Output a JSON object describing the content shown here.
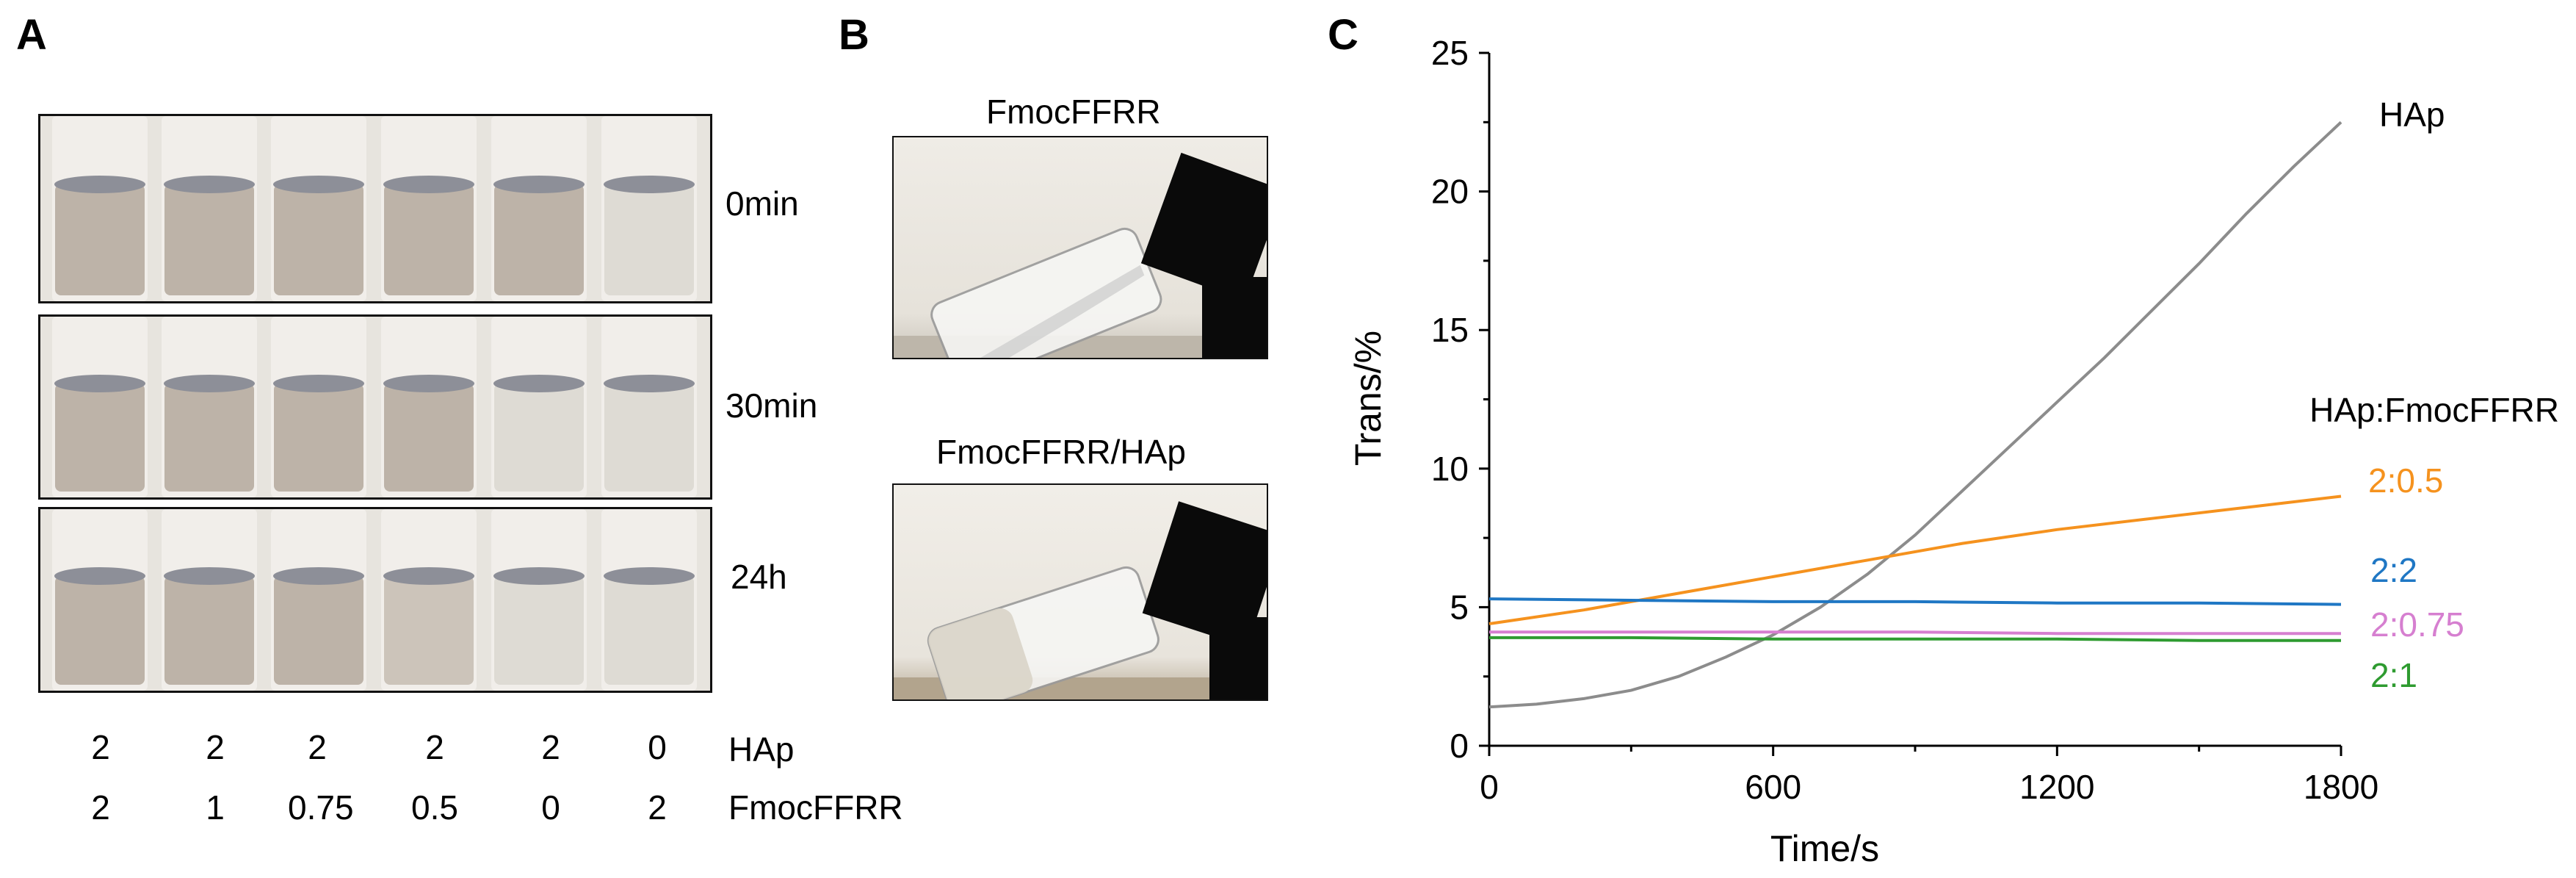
{
  "panels": {
    "a": "A",
    "b": "B",
    "c": "C"
  },
  "panel_a": {
    "time_labels": [
      "0min",
      "30min",
      "24h"
    ],
    "row_labels": {
      "hap": "HAp",
      "fmoc": "FmocFFRR"
    },
    "hap_values": [
      "2",
      "2",
      "2",
      "2",
      "2",
      "0"
    ],
    "fmoc_values": [
      "2",
      "1",
      "0.75",
      "0.5",
      "0",
      "2"
    ],
    "tube_appearance": [
      [
        "opaque",
        "opaque",
        "opaque",
        "opaque",
        "opaque",
        "clear"
      ],
      [
        "opaque",
        "opaque",
        "opaque",
        "opaque",
        "clear",
        "clear"
      ],
      [
        "opaque",
        "opaque",
        "opaque",
        "opaque-light",
        "clear",
        "clear"
      ]
    ]
  },
  "panel_b": {
    "labels": [
      "FmocFFRR",
      "FmocFFRR/HAp"
    ]
  },
  "chart_data": {
    "type": "line",
    "xlabel": "Time/s",
    "ylabel": "Trans/%",
    "xlim": [
      0,
      1800
    ],
    "ylim": [
      0,
      25
    ],
    "xticks": [
      0,
      600,
      1200,
      1800
    ],
    "yticks": [
      0,
      5,
      10,
      15,
      20,
      25
    ],
    "legend_title": "HAp:FmocFFRR",
    "grid": false,
    "series": [
      {
        "name": "HAp",
        "color": "#8c8c8c",
        "x": [
          0,
          100,
          200,
          300,
          400,
          500,
          600,
          700,
          800,
          900,
          1000,
          1100,
          1200,
          1300,
          1400,
          1500,
          1600,
          1700,
          1800
        ],
        "y": [
          1.4,
          1.5,
          1.7,
          2.0,
          2.5,
          3.2,
          4.0,
          5.0,
          6.2,
          7.6,
          9.2,
          10.8,
          12.4,
          14.0,
          15.7,
          17.4,
          19.2,
          20.9,
          22.5
        ]
      },
      {
        "name": "2:0.5",
        "color": "#f5921e",
        "x": [
          0,
          200,
          400,
          600,
          800,
          1000,
          1200,
          1400,
          1600,
          1800
        ],
        "y": [
          4.4,
          4.9,
          5.5,
          6.1,
          6.7,
          7.3,
          7.8,
          8.2,
          8.6,
          9.0
        ]
      },
      {
        "name": "2:2",
        "color": "#1f77c4",
        "x": [
          0,
          300,
          600,
          900,
          1200,
          1500,
          1800
        ],
        "y": [
          5.3,
          5.25,
          5.2,
          5.2,
          5.15,
          5.15,
          5.1
        ]
      },
      {
        "name": "2:0.75",
        "color": "#d67fd0",
        "x": [
          0,
          300,
          600,
          900,
          1200,
          1500,
          1800
        ],
        "y": [
          4.1,
          4.1,
          4.1,
          4.1,
          4.05,
          4.05,
          4.05
        ]
      },
      {
        "name": "2:1",
        "color": "#2e9b30",
        "x": [
          0,
          300,
          600,
          900,
          1200,
          1500,
          1800
        ],
        "y": [
          3.9,
          3.9,
          3.85,
          3.85,
          3.85,
          3.8,
          3.8
        ]
      }
    ]
  }
}
